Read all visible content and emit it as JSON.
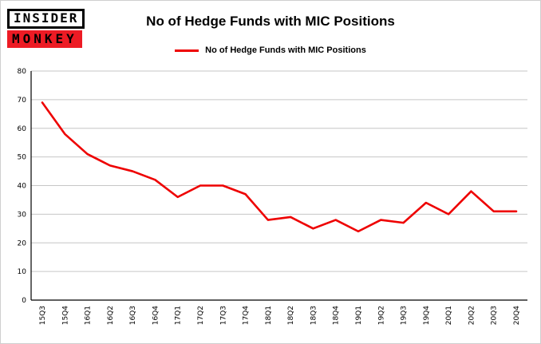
{
  "logo": {
    "line1": "INSIDER",
    "line2": "MONKEY"
  },
  "header": {
    "title": "No of Hedge Funds with MIC Positions"
  },
  "legend": {
    "label": "No of Hedge Funds with MIC Positions"
  },
  "chart_data": {
    "type": "line",
    "title": "No of Hedge Funds with MIC Positions",
    "categories": [
      "15Q3",
      "15Q4",
      "16Q1",
      "16Q2",
      "16Q3",
      "16Q4",
      "17Q1",
      "17Q2",
      "17Q3",
      "17Q4",
      "18Q1",
      "18Q2",
      "18Q3",
      "18Q4",
      "19Q1",
      "19Q2",
      "19Q3",
      "19Q4",
      "20Q1",
      "20Q2",
      "20Q3",
      "20Q4"
    ],
    "values": [
      69,
      58,
      51,
      47,
      45,
      42,
      36,
      40,
      40,
      37,
      28,
      29,
      25,
      28,
      24,
      28,
      27,
      34,
      30,
      38,
      31,
      31
    ],
    "xlabel": "",
    "ylabel": "",
    "ylim": [
      0,
      80
    ],
    "ytick_step": 10,
    "line_color": "#ee0000",
    "grid": true,
    "legend_position": "top"
  },
  "colors": {
    "logo_red": "#ed1b24",
    "grid": "#c6c6c6",
    "axis": "#000000"
  }
}
